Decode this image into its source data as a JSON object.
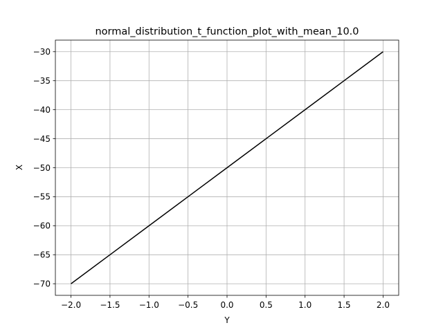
{
  "chart_data": {
    "type": "line",
    "title": "normal_distribution_t_function_plot_with_mean_10.0",
    "xlabel": "Y",
    "ylabel": "X",
    "xlim": [
      -2.2,
      2.2
    ],
    "ylim": [
      -72,
      -28
    ],
    "xticks": [
      -2.0,
      -1.5,
      -1.0,
      -0.5,
      0.0,
      0.5,
      1.0,
      1.5,
      2.0
    ],
    "xtick_labels": [
      "−2.0",
      "−1.5",
      "−1.0",
      "−0.5",
      "0.0",
      "0.5",
      "1.0",
      "1.5",
      "2.0"
    ],
    "yticks": [
      -70,
      -65,
      -60,
      -55,
      -50,
      -45,
      -40,
      -35,
      -30
    ],
    "ytick_labels": [
      "−70",
      "−65",
      "−60",
      "−55",
      "−50",
      "−45",
      "−40",
      "−35",
      "−30"
    ],
    "grid": true,
    "series": [
      {
        "x": [
          -2.0,
          -1.5,
          -1.0,
          -0.5,
          0.0,
          0.5,
          1.0,
          1.5,
          2.0
        ],
        "y": [
          -70,
          -65,
          -60,
          -55,
          -50,
          -45,
          -40,
          -35,
          -30
        ],
        "color": "#000000"
      }
    ],
    "colors": {
      "grid": "#b0b0b0",
      "axes": "#000000",
      "background": "#ffffff"
    }
  }
}
